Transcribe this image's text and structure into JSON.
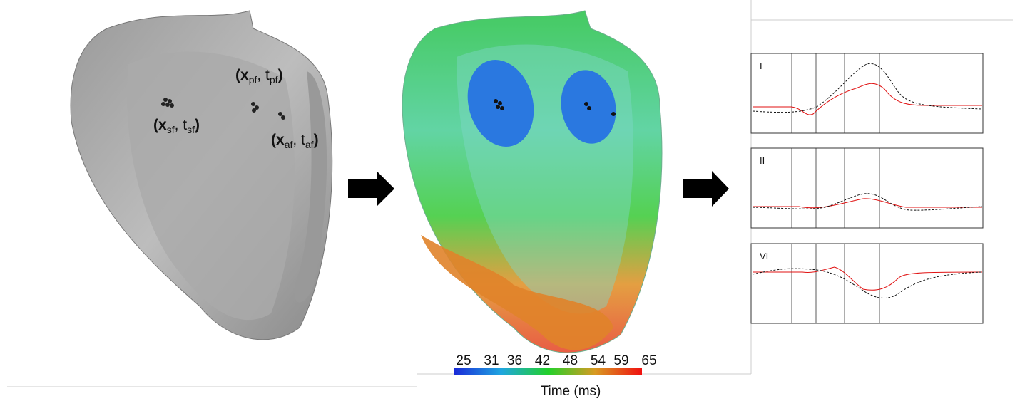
{
  "figure": {
    "labels": [
      {
        "parts": [
          "(",
          "x",
          "sf",
          ", t",
          "sf",
          ")"
        ]
      },
      {
        "parts": [
          "(",
          "x",
          "pf",
          ", t",
          "pf",
          ")"
        ]
      },
      {
        "parts": [
          "(",
          "x",
          "af",
          ", t",
          "af",
          ")"
        ]
      }
    ],
    "colorbar": {
      "ticks": [
        25,
        31,
        36,
        42,
        48,
        54,
        59,
        65
      ],
      "label": "Time (ms)"
    },
    "leads": [
      "I",
      "II",
      "VI"
    ]
  }
}
